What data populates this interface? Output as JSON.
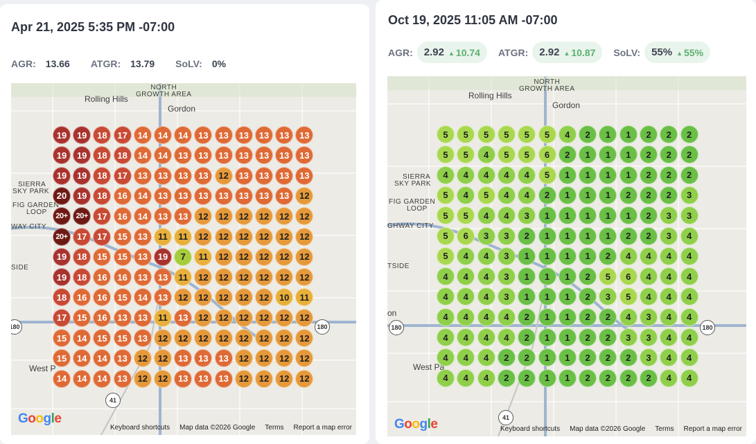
{
  "left": {
    "date": "Apr 21, 2025 5:35 PM -07:00",
    "metrics": [
      {
        "label": "AGR:",
        "value": "13.66"
      },
      {
        "label": "ATGR:",
        "value": "13.79"
      },
      {
        "label": "SoLV:",
        "value": "0%"
      }
    ],
    "grid": [
      [
        "19",
        "19",
        "18",
        "17",
        "14",
        "14",
        "14",
        "13",
        "13",
        "13",
        "13",
        "13",
        "13"
      ],
      [
        "19",
        "19",
        "18",
        "18",
        "14",
        "14",
        "13",
        "13",
        "13",
        "13",
        "13",
        "13",
        "13"
      ],
      [
        "19",
        "19",
        "18",
        "17",
        "13",
        "13",
        "13",
        "13",
        "12",
        "13",
        "13",
        "13",
        "13"
      ],
      [
        "20",
        "19",
        "18",
        "16",
        "14",
        "13",
        "13",
        "13",
        "13",
        "13",
        "13",
        "13",
        "12"
      ],
      [
        "20+",
        "20+",
        "17",
        "16",
        "14",
        "13",
        "13",
        "12",
        "12",
        "12",
        "12",
        "12",
        "12"
      ],
      [
        "20+",
        "17",
        "17",
        "15",
        "13",
        "11",
        "11",
        "12",
        "12",
        "12",
        "12",
        "12",
        "12"
      ],
      [
        "19",
        "18",
        "15",
        "15",
        "13",
        "19",
        "7",
        "11",
        "12",
        "12",
        "12",
        "12",
        "12"
      ],
      [
        "19",
        "18",
        "16",
        "16",
        "13",
        "13",
        "11",
        "12",
        "12",
        "12",
        "12",
        "12",
        "12"
      ],
      [
        "18",
        "16",
        "16",
        "15",
        "14",
        "13",
        "12",
        "12",
        "12",
        "12",
        "12",
        "10",
        "11"
      ],
      [
        "17",
        "15",
        "16",
        "13",
        "13",
        "11",
        "13",
        "12",
        "12",
        "12",
        "12",
        "12",
        "12"
      ],
      [
        "15",
        "14",
        "15",
        "15",
        "13",
        "12",
        "12",
        "12",
        "12",
        "12",
        "12",
        "12",
        "12"
      ],
      [
        "15",
        "14",
        "14",
        "13",
        "12",
        "12",
        "13",
        "13",
        "13",
        "12",
        "12",
        "12",
        "12"
      ],
      [
        "14",
        "14",
        "14",
        "13",
        "12",
        "12",
        "13",
        "13",
        "13",
        "12",
        "12",
        "12",
        "12"
      ]
    ]
  },
  "right": {
    "date": "Oct 19, 2025 11:05 AM -07:00",
    "metrics": [
      {
        "label": "AGR:",
        "value": "2.92",
        "delta": "10.74"
      },
      {
        "label": "ATGR:",
        "value": "2.92",
        "delta": "10.87"
      },
      {
        "label": "SoLV:",
        "value": "55%",
        "delta": "55%"
      }
    ],
    "grid": [
      [
        "5",
        "5",
        "5",
        "5",
        "5",
        "5",
        "4",
        "2",
        "1",
        "1",
        "2",
        "2",
        "2"
      ],
      [
        "5",
        "5",
        "4",
        "5",
        "5",
        "6",
        "2",
        "1",
        "1",
        "1",
        "2",
        "2",
        "2"
      ],
      [
        "4",
        "4",
        "4",
        "4",
        "4",
        "5",
        "1",
        "1",
        "1",
        "1",
        "2",
        "2",
        "2"
      ],
      [
        "5",
        "4",
        "5",
        "4",
        "4",
        "2",
        "1",
        "1",
        "1",
        "2",
        "2",
        "2",
        "3"
      ],
      [
        "5",
        "5",
        "4",
        "4",
        "3",
        "1",
        "1",
        "1",
        "1",
        "1",
        "2",
        "3",
        "3"
      ],
      [
        "5",
        "6",
        "3",
        "3",
        "2",
        "1",
        "1",
        "1",
        "1",
        "2",
        "2",
        "3",
        "4"
      ],
      [
        "5",
        "4",
        "4",
        "3",
        "1",
        "1",
        "1",
        "1",
        "2",
        "4",
        "4",
        "4",
        "4"
      ],
      [
        "4",
        "4",
        "4",
        "3",
        "1",
        "1",
        "1",
        "2",
        "5",
        "6",
        "4",
        "4",
        "4"
      ],
      [
        "4",
        "4",
        "4",
        "3",
        "1",
        "1",
        "1",
        "2",
        "3",
        "5",
        "4",
        "4",
        "4"
      ],
      [
        "4",
        "4",
        "4",
        "4",
        "2",
        "1",
        "1",
        "2",
        "2",
        "4",
        "3",
        "4",
        "4"
      ],
      [
        "4",
        "4",
        "4",
        "4",
        "2",
        "1",
        "1",
        "2",
        "2",
        "3",
        "3",
        "4",
        "4"
      ],
      [
        "4",
        "4",
        "4",
        "2",
        "2",
        "1",
        "1",
        "2",
        "2",
        "2",
        "3",
        "4",
        "4"
      ],
      [
        "4",
        "4",
        "4",
        "2",
        "2",
        "1",
        "1",
        "2",
        "2",
        "2",
        "2",
        "4",
        "4"
      ]
    ]
  },
  "map": {
    "places": {
      "north_growth_area": [
        "NORTH",
        "GROWTH AREA"
      ],
      "rolling_hills": "Rolling Hills",
      "gordon": "Gordon",
      "sierra_sky_park": [
        "SIERRA",
        "SKY PARK"
      ],
      "fig_garden_loop": [
        "FIG GARDEN",
        "LOOP"
      ],
      "way_city_left": "WAY CITY",
      "way_city_right": "GHWAY CITY",
      "side_left": "SIDE",
      "side_right": "TSIDE",
      "west_left": "West P",
      "west_right": "West Pa",
      "on_right": "on"
    },
    "shields": {
      "hwy180": "180",
      "hwy41": "41"
    },
    "footer": {
      "shortcuts": "Keyboard shortcuts",
      "mapdata": "Map data ©2026 Google",
      "terms": "Terms",
      "report": "Report a map error"
    },
    "logo": [
      "G",
      "o",
      "o",
      "g",
      "l",
      "e"
    ]
  },
  "colors": {
    "rank_19_20": "#a8322d",
    "rank_20_plus": "#6e1a14",
    "rank_17_18": "#c84a34",
    "rank_13_16": "#df6a35",
    "rank_12": "#e6993a",
    "rank_10_11": "#e8b03a",
    "rank_7": "#a6cc3d",
    "rank_1_2": "#6abf45",
    "rank_3_4": "#8fcf4a",
    "rank_5_6": "#a9d84f",
    "pill_bg": "#e9f4ec",
    "delta_green": "#5bb06f"
  }
}
